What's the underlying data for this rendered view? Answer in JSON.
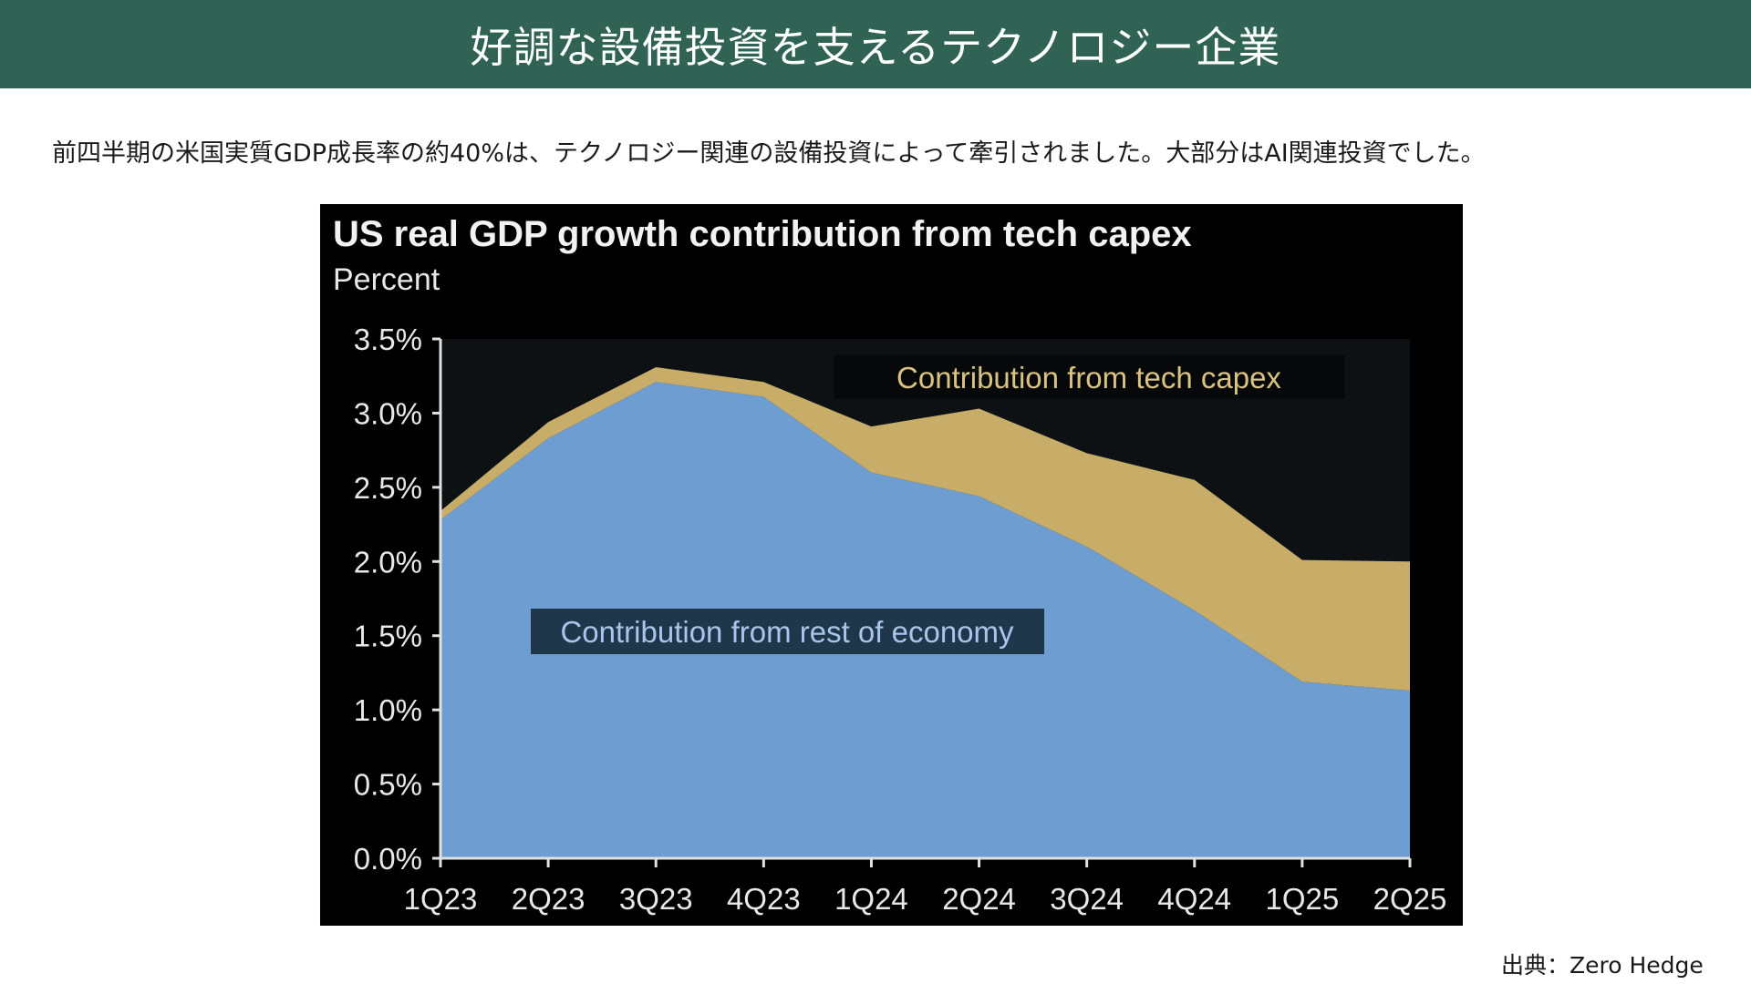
{
  "header": {
    "title": "好調な設備投資を支えるテクノロジー企業"
  },
  "lead_text": "前四半期の米国実質GDP成長率の約40%は、テクノロジー関連の設備投資によって牽引されました。大部分はAI関連投資でした。",
  "source": "出典：Zero Hedge",
  "colors": {
    "header_bg": "#306353",
    "rest_of_economy": "#6e9dd1",
    "tech_capex": "#c8ad69",
    "chart_bg": "#000000",
    "plot_bg": "#0d1114"
  },
  "chart_data": {
    "type": "area",
    "stacked": true,
    "title": "US real GDP growth contribution from tech capex",
    "subtitle": "Percent",
    "xlabel": "",
    "ylabel": "Percent",
    "categories": [
      "1Q23",
      "2Q23",
      "3Q23",
      "4Q23",
      "1Q24",
      "2Q24",
      "3Q24",
      "4Q24",
      "1Q25",
      "2Q25"
    ],
    "yticks": [
      "0.0%",
      "0.5%",
      "1.0%",
      "1.5%",
      "2.0%",
      "2.5%",
      "3.0%",
      "3.5%"
    ],
    "ytick_values": [
      0,
      0.5,
      1.0,
      1.5,
      2.0,
      2.5,
      3.0,
      3.5
    ],
    "ylim": [
      0,
      3.5
    ],
    "grid": false,
    "series": [
      {
        "name": "Contribution from rest of economy",
        "color": "#6e9dd1",
        "values": [
          2.28,
          2.83,
          3.21,
          3.11,
          2.6,
          2.44,
          2.1,
          1.67,
          1.19,
          1.13
        ]
      },
      {
        "name": "Contribution from tech capex",
        "color": "#c8ad69",
        "values": [
          0.06,
          0.11,
          0.1,
          0.1,
          0.31,
          0.59,
          0.63,
          0.88,
          0.82,
          0.87
        ]
      }
    ],
    "annotations": [
      {
        "text": "Contribution from tech capex",
        "series": "Contribution from tech capex",
        "placement": "top-right"
      },
      {
        "text": "Contribution from rest of economy",
        "series": "Contribution from rest of economy",
        "placement": "center-left"
      }
    ]
  }
}
